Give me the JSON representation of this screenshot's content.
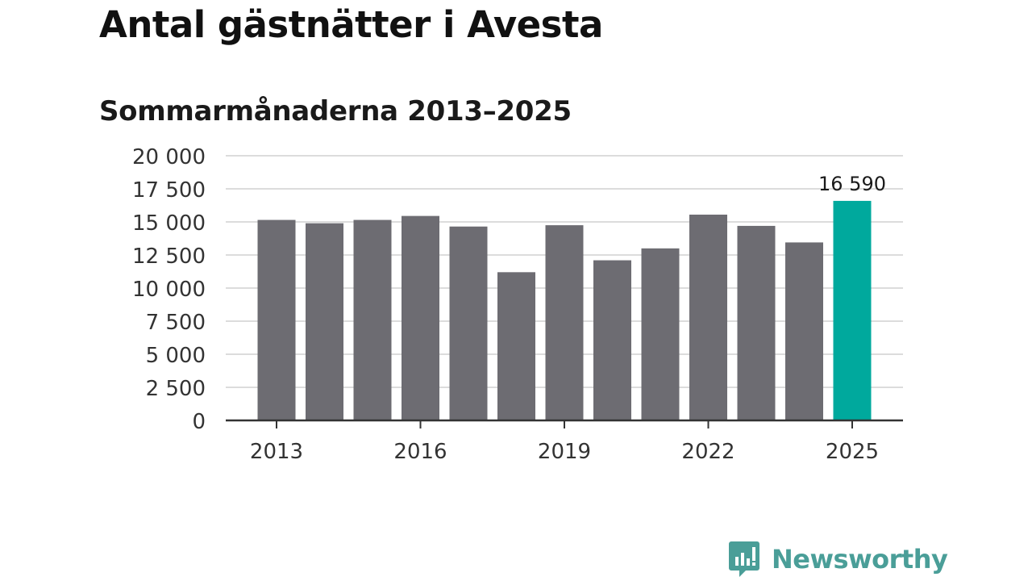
{
  "title": "Antal gästnätter i Avesta",
  "subtitle": "Sommarmånaderna 2013–2025",
  "brand": {
    "name": "Newsworthy",
    "color": "#4a9e98",
    "icon": "chart-speech-bubble-icon"
  },
  "colors": {
    "bar": "#6d6c72",
    "highlight": "#00a99d",
    "grid": "#dcdcdc",
    "axis": "#333333"
  },
  "chart_data": {
    "type": "bar",
    "categories": [
      "2013",
      "2014",
      "2015",
      "2016",
      "2017",
      "2018",
      "2019",
      "2020",
      "2021",
      "2022",
      "2023",
      "2024",
      "2025"
    ],
    "values": [
      15150,
      14900,
      15150,
      15450,
      14650,
      11200,
      14750,
      12100,
      13000,
      15550,
      14700,
      13450,
      16590
    ],
    "highlight_index": 12,
    "annotation": {
      "index": 12,
      "label": "16 590"
    },
    "ylim": [
      0,
      20000
    ],
    "yticks": [
      0,
      2500,
      5000,
      7500,
      10000,
      12500,
      15000,
      17500,
      20000
    ],
    "ytick_labels": [
      "0",
      "2 500",
      "5 000",
      "7 500",
      "10 000",
      "12 500",
      "15 000",
      "17 500",
      "20 000"
    ],
    "xtick_labels": [
      "2013",
      "2016",
      "2019",
      "2022",
      "2025"
    ],
    "xtick_indices": [
      0,
      3,
      6,
      9,
      12
    ],
    "grid": "horizontal",
    "xlabel": "",
    "ylabel": ""
  }
}
